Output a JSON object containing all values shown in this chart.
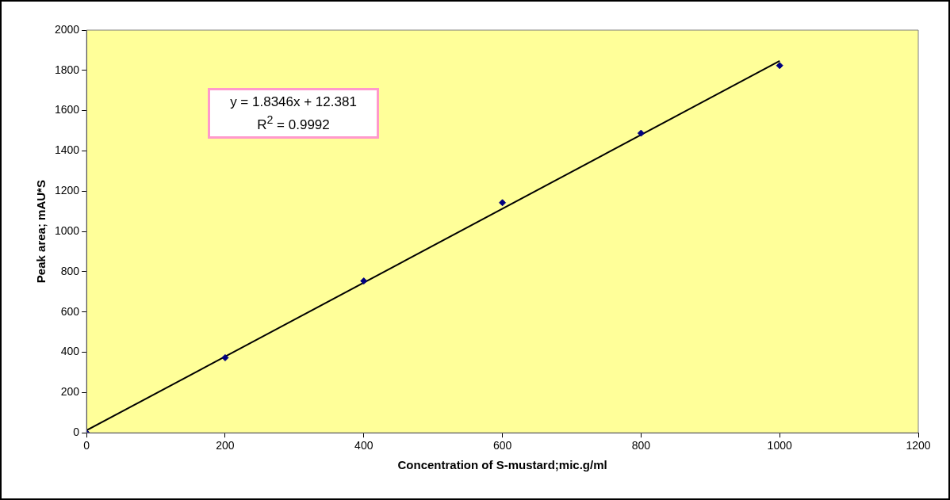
{
  "chart_data": {
    "type": "scatter",
    "xlabel": "Concentration of S-mustard;mic.g/ml",
    "ylabel": "Peak area; mAU*S",
    "annotations": [
      "y = 1.8346x + 12.381",
      "R$^{2}$ = 0.9992"
    ],
    "series": [
      {
        "type": "scatter",
        "color": "#000080",
        "marker": "diamond",
        "x": [
          0,
          200,
          400,
          600,
          800,
          1000
        ],
        "values": [
          0,
          373,
          754,
          1143,
          1488,
          1824
        ]
      },
      {
        "type": "line",
        "color": "#000000",
        "marker": "none",
        "x": [
          0,
          1000
        ],
        "values": [
          12,
          1847
        ]
      }
    ],
    "xlim": [
      0,
      1200
    ],
    "xticks": [
      0,
      200,
      400,
      600,
      800,
      1000,
      1200
    ],
    "ylim": [
      0,
      2000
    ],
    "yticks": [
      0,
      200,
      400,
      600,
      800,
      1000,
      1200,
      1400,
      1600,
      1800,
      2000
    ],
    "grid": false,
    "legend": false
  }
}
